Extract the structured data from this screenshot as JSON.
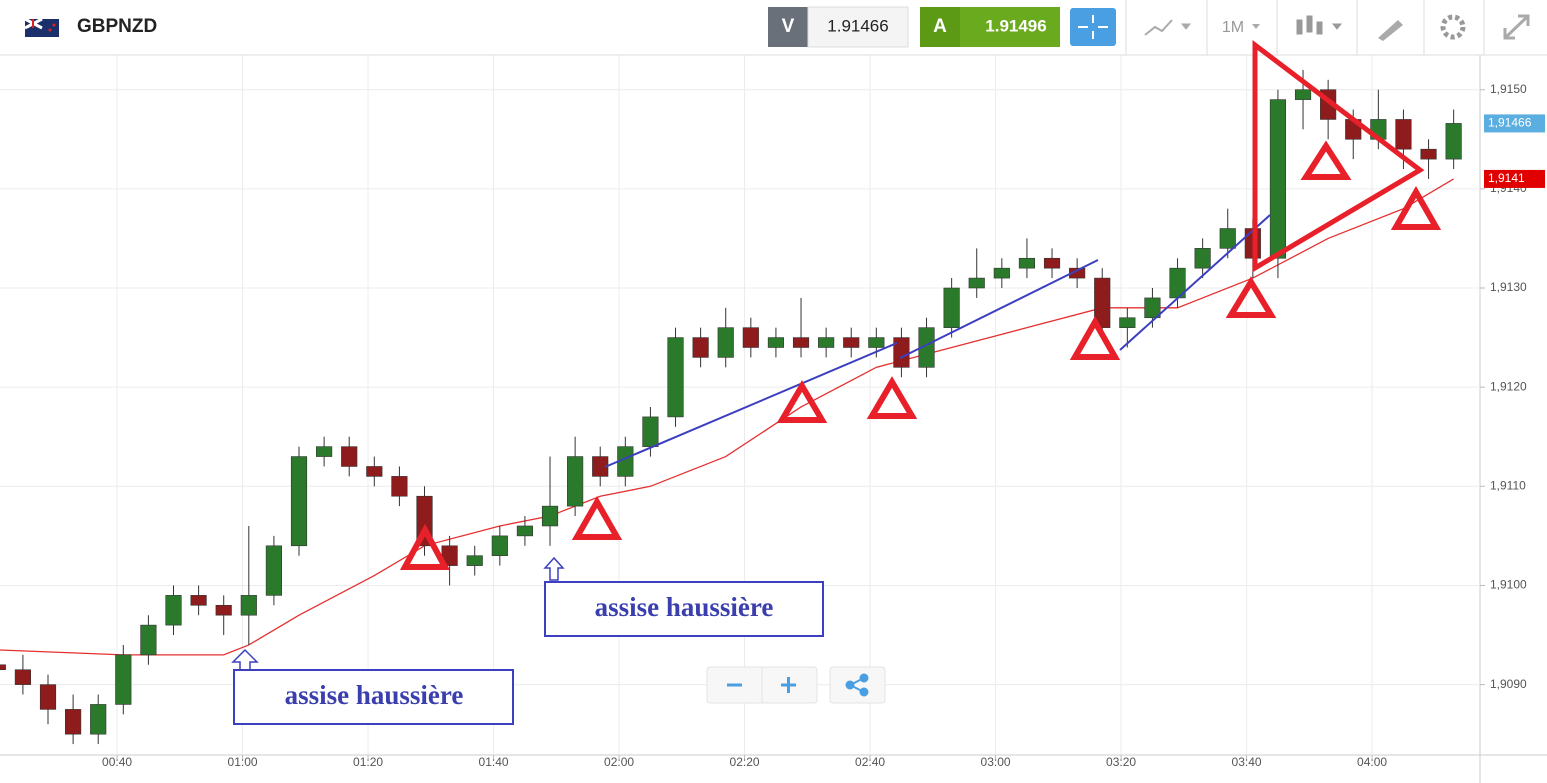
{
  "header": {
    "symbol": "GBPNZD",
    "sell_label": "V",
    "sell_price": "1.91466",
    "buy_label": "A",
    "buy_price": "1.91496",
    "timeframe": "1M"
  },
  "annotations": [
    {
      "text": "assise haussière"
    },
    {
      "text": "assise haussière"
    }
  ],
  "chart_data": {
    "type": "candlestick",
    "xlim": [
      21.35,
      257.2
    ],
    "ylim": [
      1.90829,
      1.91535
    ],
    "xticks": [
      {
        "value": 40,
        "label": "00:40"
      },
      {
        "value": 60,
        "label": "01:00"
      },
      {
        "value": 80,
        "label": "01:20"
      },
      {
        "value": 100,
        "label": "01:40"
      },
      {
        "value": 120,
        "label": "02:00"
      },
      {
        "value": 140,
        "label": "02:20"
      },
      {
        "value": 160,
        "label": "02:40"
      },
      {
        "value": 180,
        "label": "03:00"
      },
      {
        "value": 200,
        "label": "03:20"
      },
      {
        "value": 220,
        "label": "03:40"
      },
      {
        "value": 240,
        "label": "04:00"
      }
    ],
    "yticks": [
      {
        "value": 1.909,
        "label": "1,9090"
      },
      {
        "value": 1.91,
        "label": "1,9100"
      },
      {
        "value": 1.911,
        "label": "1,9110"
      },
      {
        "value": 1.912,
        "label": "1,9120"
      },
      {
        "value": 1.913,
        "label": "1,9130"
      },
      {
        "value": 1.914,
        "label": "1,9140"
      },
      {
        "value": 1.915,
        "label": "1,9150"
      }
    ],
    "grid": true,
    "series": [
      {
        "up_color": "#2b7a2b",
        "down_color": "#8e1c1c",
        "x": [
          21,
          25,
          29,
          33,
          37,
          41,
          45,
          49,
          53,
          57,
          61,
          65,
          69,
          73,
          77,
          81,
          85,
          89,
          93,
          97,
          101,
          105,
          109,
          113,
          117,
          121,
          125,
          129,
          133,
          137,
          141,
          145,
          149,
          153,
          157,
          161,
          165,
          169,
          173,
          177,
          181,
          185,
          189,
          193,
          197,
          201,
          205,
          209,
          213,
          217,
          221,
          225,
          229,
          233,
          237,
          241,
          245,
          249,
          253
        ],
        "open": [
          1.9092,
          1.90915,
          1.909,
          1.90875,
          1.9085,
          1.9088,
          1.9093,
          1.9096,
          1.9099,
          1.9098,
          1.9097,
          1.9099,
          1.9104,
          1.9113,
          1.9114,
          1.9112,
          1.9111,
          1.9109,
          1.9104,
          1.9102,
          1.9103,
          1.9105,
          1.9106,
          1.9108,
          1.9113,
          1.9111,
          1.9114,
          1.9117,
          1.9125,
          1.9123,
          1.9126,
          1.9124,
          1.9125,
          1.9124,
          1.9125,
          1.9124,
          1.9125,
          1.9122,
          1.9126,
          1.913,
          1.9131,
          1.9132,
          1.9133,
          1.9132,
          1.9131,
          1.9126,
          1.9127,
          1.9129,
          1.9132,
          1.9134,
          1.9136,
          1.9133,
          1.9149,
          1.915,
          1.9147,
          1.9145,
          1.9147,
          1.9144,
          1.9143
        ],
        "high": [
          1.9093,
          1.9093,
          1.9091,
          1.9089,
          1.9089,
          1.9094,
          1.9097,
          1.91,
          1.91,
          1.9099,
          1.9106,
          1.9105,
          1.9114,
          1.9115,
          1.9115,
          1.9113,
          1.9112,
          1.911,
          1.9105,
          1.9104,
          1.9106,
          1.9107,
          1.9113,
          1.9115,
          1.9114,
          1.9115,
          1.9118,
          1.9126,
          1.9126,
          1.9128,
          1.9127,
          1.9126,
          1.9129,
          1.9126,
          1.9126,
          1.9126,
          1.9126,
          1.9127,
          1.9131,
          1.9134,
          1.9133,
          1.9135,
          1.9134,
          1.9133,
          1.9132,
          1.9128,
          1.913,
          1.9133,
          1.9135,
          1.9138,
          1.9137,
          1.915,
          1.9152,
          1.9151,
          1.9148,
          1.915,
          1.9148,
          1.9145,
          1.9148
        ],
        "low": [
          1.909,
          1.9089,
          1.9086,
          1.9084,
          1.9084,
          1.9087,
          1.9092,
          1.9095,
          1.9097,
          1.9095,
          1.9094,
          1.9098,
          1.9103,
          1.9112,
          1.9111,
          1.911,
          1.9108,
          1.9103,
          1.91,
          1.9101,
          1.9102,
          1.9104,
          1.9104,
          1.9107,
          1.911,
          1.911,
          1.9113,
          1.9116,
          1.9122,
          1.9122,
          1.9123,
          1.9123,
          1.9123,
          1.9123,
          1.9123,
          1.9123,
          1.9121,
          1.9121,
          1.9125,
          1.9129,
          1.913,
          1.9131,
          1.9131,
          1.913,
          1.9125,
          1.9124,
          1.9126,
          1.9128,
          1.9131,
          1.9133,
          1.9131,
          1.9131,
          1.9146,
          1.9145,
          1.9143,
          1.9144,
          1.9142,
          1.9141,
          1.9142
        ],
        "close": [
          1.90915,
          1.909,
          1.90875,
          1.9085,
          1.9088,
          1.9093,
          1.9096,
          1.9099,
          1.9098,
          1.9097,
          1.9099,
          1.9104,
          1.9113,
          1.9114,
          1.9112,
          1.9111,
          1.9109,
          1.9104,
          1.9102,
          1.9103,
          1.9105,
          1.9106,
          1.9108,
          1.9113,
          1.9111,
          1.9114,
          1.9117,
          1.9125,
          1.9123,
          1.9126,
          1.9124,
          1.9125,
          1.9124,
          1.9125,
          1.9124,
          1.9125,
          1.9122,
          1.9126,
          1.913,
          1.9131,
          1.9132,
          1.9133,
          1.9132,
          1.9131,
          1.9126,
          1.9127,
          1.9129,
          1.9132,
          1.9134,
          1.9136,
          1.9133,
          1.9149,
          1.915,
          1.9147,
          1.9145,
          1.9147,
          1.9144,
          1.9143,
          1.91466
        ]
      }
    ],
    "lines": [
      {
        "color": "#e53030",
        "x": [
          21,
          41,
          57,
          61,
          69,
          81,
          89,
          101,
          109,
          117,
          125,
          137,
          149,
          161,
          173,
          185,
          197,
          209,
          221,
          233,
          245,
          253
        ],
        "values": [
          1.90935,
          1.9093,
          1.9093,
          1.9094,
          1.9097,
          1.9101,
          1.9104,
          1.9106,
          1.9107,
          1.9109,
          1.911,
          1.9113,
          1.9118,
          1.9122,
          1.9124,
          1.9126,
          1.9128,
          1.9128,
          1.9131,
          1.9135,
          1.9138,
          1.9141
        ]
      }
    ],
    "price_tags": [
      {
        "value": 1.91466,
        "label": "1,91466",
        "color": "#5aaee0"
      },
      {
        "value": 1.9141,
        "label": "1,9141",
        "color": "#e00000"
      }
    ]
  }
}
